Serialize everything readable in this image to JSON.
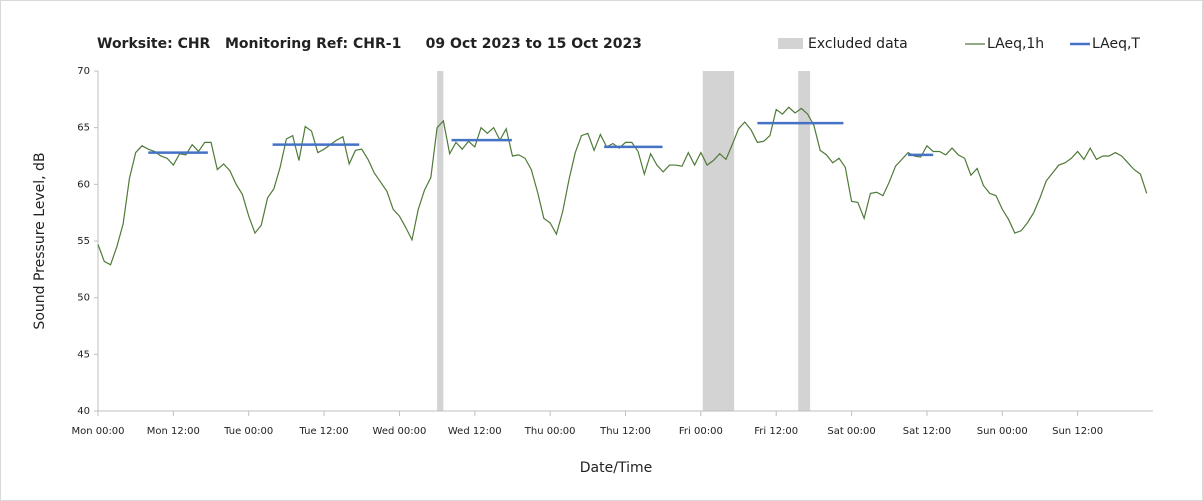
{
  "chart_data": {
    "type": "line",
    "title": "Worksite: CHR   Monitoring Ref: CHR-1     09 Oct 2023 to 15 Oct 2023",
    "xlabel": "Date/Time",
    "ylabel": "Sound Pressure Level, dB",
    "xlim": [
      0,
      168
    ],
    "ylim": [
      40,
      70
    ],
    "yticks": [
      40,
      45,
      50,
      55,
      60,
      65,
      70
    ],
    "xticks": [
      {
        "value": 0,
        "label": "Mon 00:00"
      },
      {
        "value": 12,
        "label": "Mon 12:00"
      },
      {
        "value": 24,
        "label": "Tue 00:00"
      },
      {
        "value": 36,
        "label": "Tue 12:00"
      },
      {
        "value": 48,
        "label": "Wed 00:00"
      },
      {
        "value": 60,
        "label": "Wed 12:00"
      },
      {
        "value": 72,
        "label": "Thu 00:00"
      },
      {
        "value": 84,
        "label": "Thu 12:00"
      },
      {
        "value": 96,
        "label": "Fri 00:00"
      },
      {
        "value": 108,
        "label": "Fri 12:00"
      },
      {
        "value": 120,
        "label": "Sat 00:00"
      },
      {
        "value": 132,
        "label": "Sat 12:00"
      },
      {
        "value": 144,
        "label": "Sun 00:00"
      },
      {
        "value": 156,
        "label": "Sun 12:00"
      }
    ],
    "grid": false,
    "legend": "top-right",
    "excluded": {
      "name": "Excluded data",
      "color": "#d3d3d3",
      "ranges": [
        {
          "start": 54,
          "end": 55
        },
        {
          "start": 96.3,
          "end": 101.3
        },
        {
          "start": 111.5,
          "end": 113.4
        }
      ]
    },
    "series": [
      {
        "name": "LAeq,1h",
        "color": "#4f7a38",
        "x": [
          0,
          1,
          2,
          3,
          4,
          5,
          6,
          7,
          8,
          9,
          10,
          11,
          12,
          13,
          14,
          15,
          16,
          17,
          18,
          19,
          20,
          21,
          22,
          23,
          24,
          25,
          26,
          27,
          28,
          29,
          30,
          31,
          32,
          33,
          34,
          35,
          36,
          37,
          38,
          39,
          40,
          41,
          42,
          43,
          44,
          45,
          46,
          47,
          48,
          49,
          50,
          51,
          52,
          53,
          54,
          55,
          56,
          57,
          58,
          59,
          60,
          61,
          62,
          63,
          64,
          65,
          66,
          67,
          68,
          69,
          70,
          71,
          72,
          73,
          74,
          75,
          76,
          77,
          78,
          79,
          80,
          81,
          82,
          83,
          84,
          85,
          86,
          87,
          88,
          89,
          90,
          91,
          92,
          93,
          94,
          95,
          96,
          97,
          98,
          99,
          100,
          101,
          102,
          103,
          104,
          105,
          106,
          107,
          108,
          109,
          110,
          111,
          112,
          113,
          114,
          115,
          116,
          117,
          118,
          119,
          120,
          121,
          122,
          123,
          124,
          125,
          126,
          127,
          128,
          129,
          130,
          131,
          132,
          133,
          134,
          135,
          136,
          137,
          138,
          139,
          140,
          141,
          142,
          143,
          144,
          145,
          146,
          147,
          148,
          149,
          150,
          151,
          152,
          153,
          154,
          155,
          156,
          157,
          158,
          159,
          160,
          161,
          162,
          163,
          164,
          165,
          166,
          167
        ],
        "values": [
          54.7,
          53.2,
          52.9,
          54.5,
          56.5,
          60.5,
          62.8,
          63.4,
          63.1,
          62.9,
          62.5,
          62.3,
          61.7,
          62.7,
          62.6,
          63.5,
          62.9,
          63.7,
          63.7,
          61.3,
          61.8,
          61.2,
          60,
          59.1,
          57.2,
          55.7,
          56.4,
          58.8,
          59.6,
          61.5,
          64,
          64.3,
          62.1,
          65.1,
          64.7,
          62.8,
          63.1,
          63.5,
          63.9,
          64.2,
          61.8,
          63,
          63.1,
          62.2,
          61,
          60.2,
          59.4,
          57.8,
          57.2,
          56.2,
          55.1,
          57.8,
          59.5,
          60.6,
          65,
          65.6,
          62.7,
          63.7,
          63.1,
          63.8,
          63.3,
          65,
          64.5,
          65,
          63.9,
          64.9,
          62.5,
          62.6,
          62.3,
          61.3,
          59.3,
          57,
          56.6,
          55.6,
          57.6,
          60.4,
          62.8,
          64.3,
          64.5,
          63,
          64.4,
          63.3,
          63.6,
          63.2,
          63.7,
          63.7,
          62.9,
          60.9,
          62.7,
          61.7,
          61.1,
          61.7,
          61.7,
          61.6,
          62.8,
          61.7,
          62.8,
          61.7,
          62.1,
          62.7,
          62.2,
          63.5,
          64.9,
          65.5,
          64.8,
          63.7,
          63.8,
          64.3,
          66.6,
          66.2,
          66.8,
          66.3,
          66.7,
          66.2,
          65.2,
          63,
          62.6,
          61.9,
          62.3,
          61.5,
          58.5,
          58.4,
          57,
          59.2,
          59.3,
          59,
          60.2,
          61.6,
          62.2,
          62.8,
          62.5,
          62.4,
          63.4,
          62.9,
          62.9,
          62.6,
          63.2,
          62.6,
          62.3,
          60.8,
          61.4,
          59.9,
          59.2,
          59,
          57.8,
          56.9,
          55.7,
          55.9,
          56.6,
          57.5,
          58.8,
          60.3,
          61,
          61.7,
          61.9,
          62.3,
          62.9,
          62.2,
          63.2,
          62.2,
          62.5,
          62.5,
          62.8,
          62.5,
          61.9,
          61.3,
          60.9,
          59.2
        ]
      },
      {
        "name": "LAeq,T",
        "color": "#4472c4",
        "segments": [
          {
            "start": 8,
            "end": 17.5,
            "value": 62.8
          },
          {
            "start": 27.8,
            "end": 41.6,
            "value": 63.5
          },
          {
            "start": 56.3,
            "end": 65.9,
            "value": 63.9
          },
          {
            "start": 80.6,
            "end": 89.9,
            "value": 63.3
          },
          {
            "start": 105,
            "end": 118.7,
            "value": 65.4
          },
          {
            "start": 129,
            "end": 133,
            "value": 62.6
          }
        ]
      }
    ]
  }
}
